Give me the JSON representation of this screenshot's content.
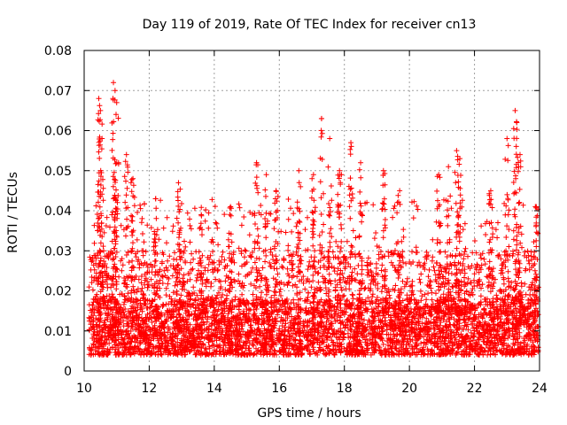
{
  "chart_data": {
    "type": "scatter",
    "title": "Day 119 of 2019, Rate Of TEC Index for receiver cn13",
    "xlabel": "GPS time / hours",
    "ylabel": "ROTI / TECUs",
    "xlim": [
      10,
      24
    ],
    "ylim": [
      0,
      0.08
    ],
    "xticks": [
      "10",
      "12",
      "14",
      "16",
      "18",
      "20",
      "22",
      "24"
    ],
    "yticks": [
      "0",
      "0.01",
      "0.02",
      "0.03",
      "0.04",
      "0.05",
      "0.06",
      "0.07",
      "0.08"
    ],
    "grid": true,
    "marker": "+",
    "color": "#ff0000",
    "series": [
      {
        "name": "ROTI",
        "x": [
          10.45,
          10.5,
          10.55,
          10.9,
          10.95,
          11.0,
          11.3,
          11.5,
          12.2,
          12.9,
          13.6,
          14.5,
          15.3,
          15.6,
          15.9,
          16.6,
          17.05,
          17.3,
          17.55,
          17.85,
          18.2,
          18.5,
          19.2,
          19.7,
          20.9,
          21.2,
          21.45,
          21.55,
          22.5,
          23.0,
          23.25,
          23.3,
          23.4,
          23.9
        ],
        "y": [
          0.068,
          0.065,
          0.058,
          0.072,
          0.07,
          0.067,
          0.054,
          0.048,
          0.043,
          0.047,
          0.039,
          0.041,
          0.052,
          0.049,
          0.045,
          0.05,
          0.049,
          0.063,
          0.058,
          0.05,
          0.057,
          0.052,
          0.05,
          0.045,
          0.049,
          0.051,
          0.055,
          0.053,
          0.045,
          0.058,
          0.065,
          0.062,
          0.054,
          0.041
        ],
        "dense_range": {
          "note": "continuous dense band of points across 10-24 h",
          "y_low": 0.004,
          "y_typical_high": 0.035
        }
      }
    ]
  }
}
